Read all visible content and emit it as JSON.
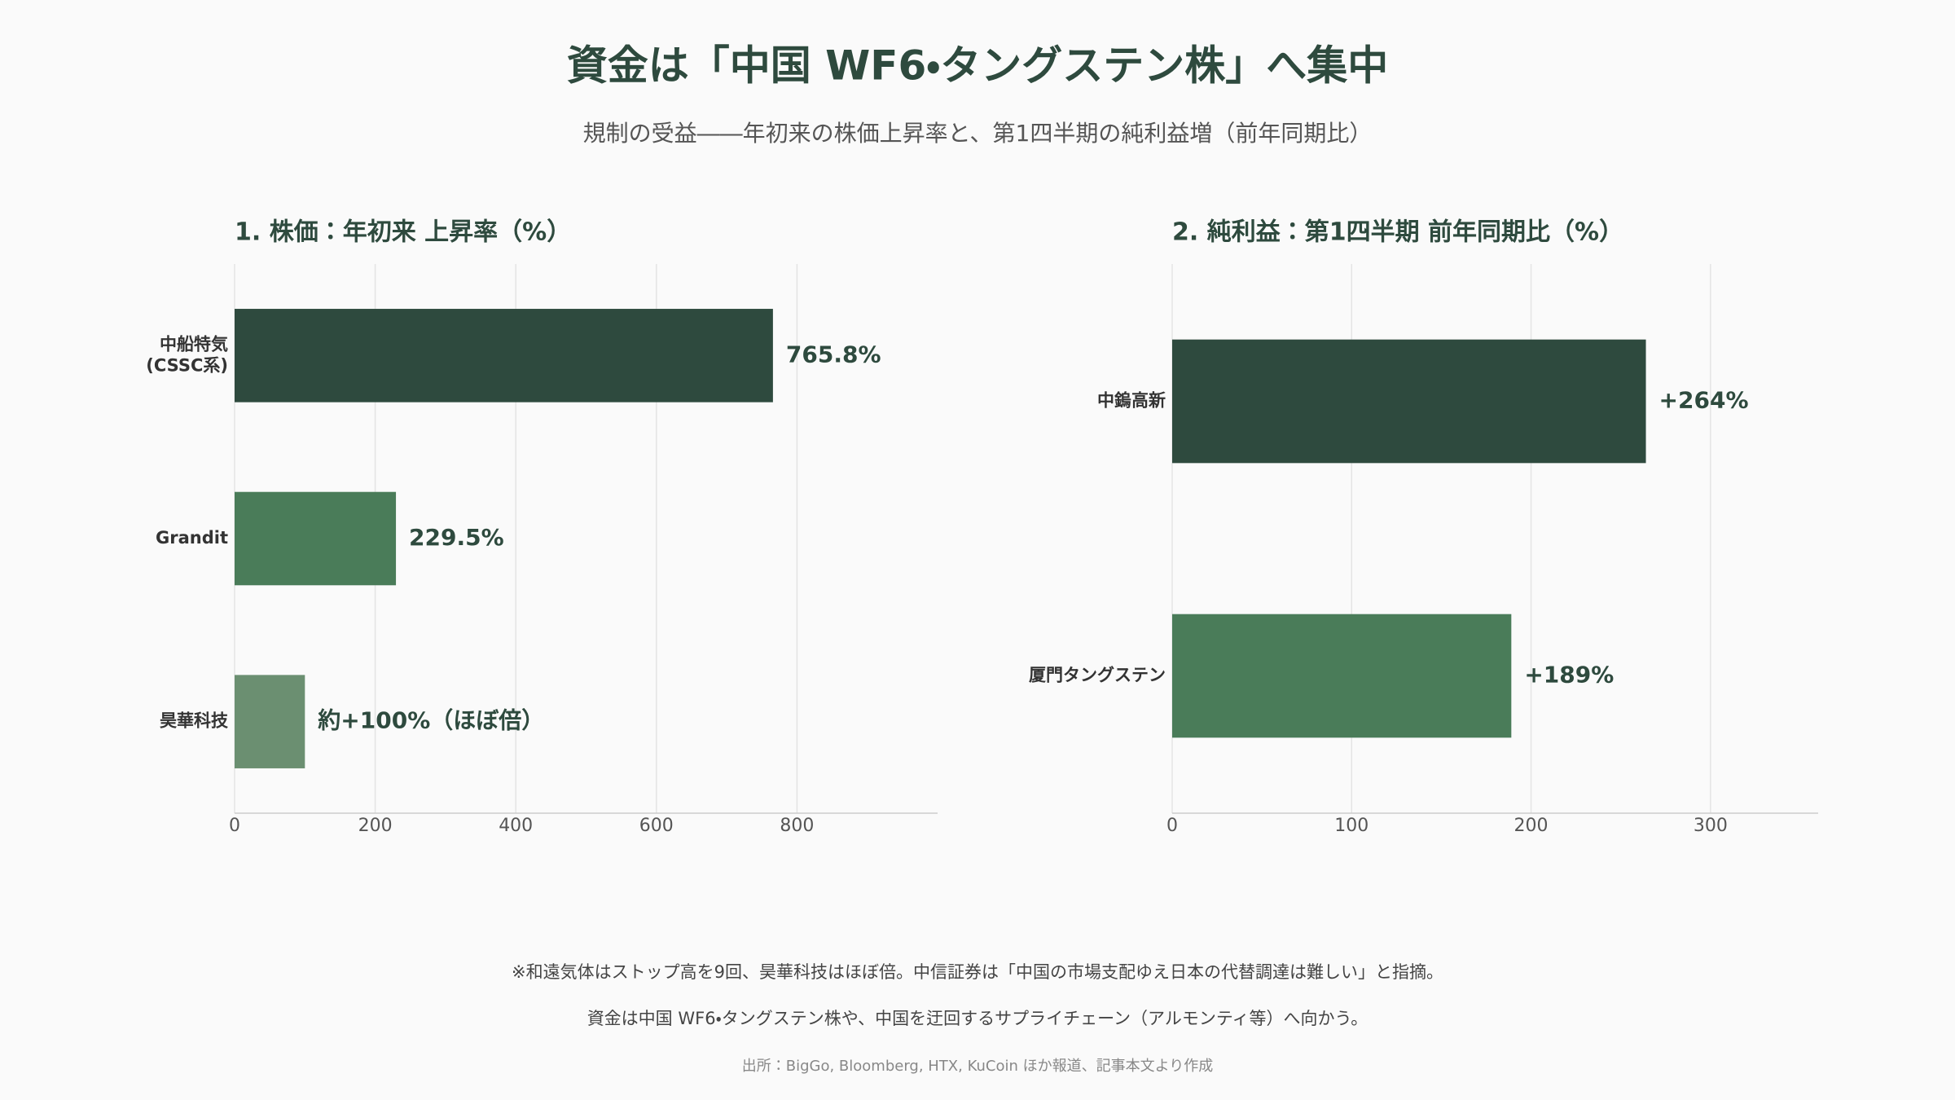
{
  "title": "資金は「中国 WF6・タングステン株」へ集中",
  "subtitle": "規制の受益――年初来の株価上昇率と、第1四半期の純利益増（前年同期比）",
  "chart_data": [
    {
      "type": "bar",
      "orientation": "horizontal",
      "title": "1. 株価：年初来 上昇率（%）",
      "categories": [
        "中船特気\n(CSSC系)",
        "Grandit",
        "昊華科技"
      ],
      "values": [
        765.8,
        229.5,
        100
      ],
      "value_labels": [
        "765.8%",
        "229.5%",
        "約+100%（ほぼ倍）"
      ],
      "colors": [
        "#2e4a3e",
        "#4a7c59",
        "#6b8f71"
      ],
      "xlim": [
        0,
        1000
      ],
      "xticks": [
        0,
        200,
        400,
        600,
        800
      ],
      "grid": true
    },
    {
      "type": "bar",
      "orientation": "horizontal",
      "title": "2. 純利益：第1四半期 前年同期比（%）",
      "categories": [
        "中鎢高新",
        "厦門タングステン"
      ],
      "values": [
        264,
        189
      ],
      "value_labels": [
        "+264%",
        "+189%"
      ],
      "colors": [
        "#2e4a3e",
        "#4a7c59"
      ],
      "xlim": [
        0,
        360
      ],
      "xticks": [
        0,
        100,
        200,
        300
      ],
      "grid": true
    }
  ],
  "notes": [
    "※和遠気体はストップ高を9回、昊華科技はほぼ倍。中信証券は「中国の市場支配ゆえ日本の代替調達は難しい」と指摘。",
    "資金は中国 WF6・タングステン株や、中国を迂回するサプライチェーン（アルモンティ等）へ向かう。"
  ],
  "source": "出所：BigGo, Bloomberg, HTX, KuCoin ほか報道、記事本文より作成"
}
